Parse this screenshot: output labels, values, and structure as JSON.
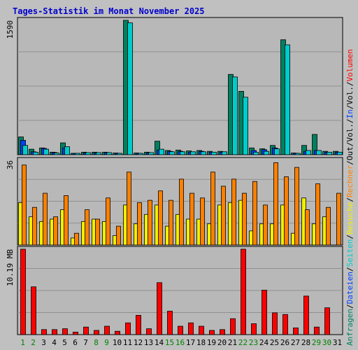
{
  "title": "Tages-Statistik im Monat November 2025",
  "colors": {
    "background": "#c0c0c0",
    "panel": "#b8b8b8",
    "grid": "#8f8f8f",
    "title": "#0000cc",
    "hits": "#008060",
    "files": "#00cccc",
    "pages": "#0040ff",
    "visits": "#f0f000",
    "sites": "#ff8000",
    "kbytes": "#ff0000",
    "weekend": "#008000",
    "weekday": "#000000"
  },
  "chart_data": {
    "type": "bar",
    "title": "Tages-Statistik im Monat November 2025",
    "categories": [
      "1",
      "2",
      "3",
      "4",
      "5",
      "6",
      "7",
      "8",
      "9",
      "10",
      "11",
      "12",
      "13",
      "14",
      "15",
      "16",
      "17",
      "18",
      "19",
      "20",
      "21",
      "22",
      "23",
      "24",
      "25",
      "26",
      "27",
      "28",
      "29",
      "30",
      "31"
    ],
    "weekend_days": [
      "1",
      "2",
      "8",
      "9",
      "15",
      "16",
      "22",
      "23",
      "29",
      "30"
    ],
    "panels": [
      {
        "id": "requests",
        "ymax_label": "1590",
        "ylim": [
          0,
          1590
        ],
        "series": [
          {
            "name": "Anfragen",
            "color": "#008060",
            "values": [
              210,
              65,
              80,
              30,
              140,
              10,
              30,
              30,
              30,
              20,
              1590,
              20,
              30,
              160,
              50,
              55,
              45,
              50,
              40,
              40,
              950,
              750,
              80,
              70,
              110,
              1360,
              20,
              110,
              240,
              40,
              40
            ]
          },
          {
            "name": "Seiten",
            "color": "#0040ff",
            "values": [
              170,
              35,
              75,
              25,
              80,
              8,
              20,
              20,
              25,
              15,
              0,
              15,
              20,
              55,
              40,
              40,
              30,
              40,
              30,
              30,
              0,
              0,
              50,
              60,
              80,
              0,
              15,
              40,
              50,
              30,
              30
            ]
          },
          {
            "name": "Dateien",
            "color": "#00cccc",
            "values": [
              110,
              30,
              65,
              20,
              95,
              8,
              25,
              25,
              25,
              15,
              1560,
              15,
              25,
              65,
              35,
              35,
              35,
              35,
              30,
              35,
              920,
              680,
              30,
              40,
              70,
              1300,
              10,
              50,
              50,
              30,
              30
            ]
          }
        ]
      },
      {
        "id": "visits",
        "ymax_label": "36",
        "ylim": [
          0,
          36
        ],
        "series": [
          {
            "name": "Besuche",
            "color": "#f0f000",
            "values": [
              18,
              12,
              10,
              11,
              15,
              3,
              10,
              11,
              10,
              4,
              17,
              9,
              13,
              17,
              8,
              13,
              11,
              11,
              9,
              17,
              18,
              19,
              6,
              9,
              9,
              17,
              5,
              20,
              9,
              12,
              0
            ]
          },
          {
            "name": "Rechner",
            "color": "#ff8000",
            "values": [
              34,
              16,
              22,
              12,
              21,
              5,
              15,
              11,
              20,
              8,
              31,
              18,
              19,
              23,
              19,
              28,
              22,
              20,
              31,
              25,
              28,
              22,
              27,
              17,
              35,
              29,
              33,
              15,
              26,
              16,
              22
            ]
          }
        ]
      },
      {
        "id": "volume",
        "ymax_label": "10.19 MB",
        "ylim": [
          0,
          10.19
        ],
        "series": [
          {
            "name": "Volumen",
            "color": "#ff0000",
            "values": [
              10.19,
              5.7,
              0.6,
              0.6,
              0.7,
              0.3,
              0.9,
              0.5,
              1.0,
              0.4,
              1.4,
              2.3,
              0.7,
              6.2,
              2.8,
              1.0,
              1.4,
              1.0,
              0.5,
              0.6,
              1.9,
              10.19,
              1.3,
              5.3,
              2.6,
              2.4,
              0.8,
              4.6,
              0.9,
              3.2,
              0
            ]
          }
        ]
      }
    ],
    "legend": [
      {
        "label": "Anfragen",
        "color": "#008060"
      },
      {
        "label": "Dateien",
        "color": "#0040ff"
      },
      {
        "label": "Seiten",
        "color": "#00cccc"
      },
      {
        "label": "Besuche",
        "color": "#f0f000"
      },
      {
        "label": "Rechner",
        "color": "#ff8000"
      },
      {
        "label": "Out",
        "color": "#000000"
      },
      {
        "label": "Vol.",
        "color": "#000000"
      },
      {
        "label": "In",
        "color": "#0040ff"
      },
      {
        "label": "Vol.",
        "color": "#000000"
      },
      {
        "label": "Volumen",
        "color": "#ff0000"
      }
    ],
    "legend_separator": "/",
    "legend_placement": "right"
  }
}
